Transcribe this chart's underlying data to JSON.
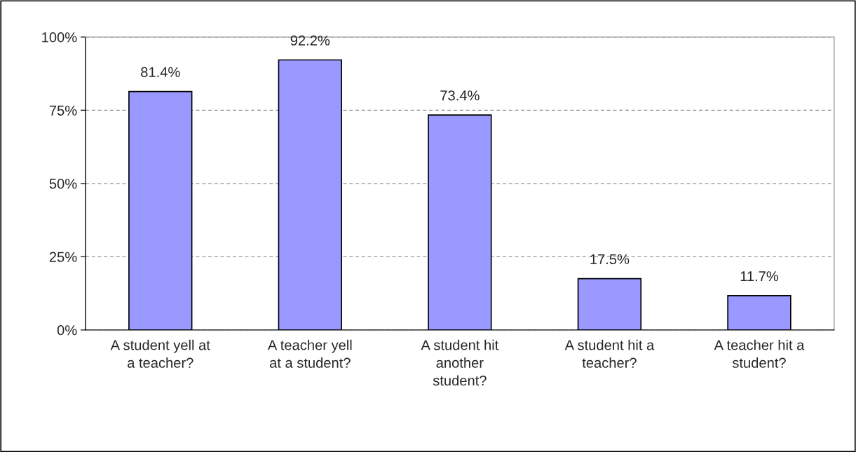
{
  "chart_data": {
    "type": "bar",
    "categories": [
      "A student yell at\na teacher?",
      "A teacher yell\nat a student?",
      "A student hit\nanother\nstudent?",
      "A student hit a\nteacher?",
      "A teacher hit a\nstudent?"
    ],
    "values": [
      81.4,
      92.2,
      73.4,
      17.5,
      11.7
    ],
    "value_labels": [
      "81.4%",
      "92.2%",
      "73.4%",
      "17.5%",
      "11.7%"
    ],
    "color": "#9999ff",
    "ylim": [
      0,
      100
    ],
    "yticks": [
      {
        "value": 0,
        "label": "0%"
      },
      {
        "value": 25,
        "label": "25%"
      },
      {
        "value": 50,
        "label": "50%"
      },
      {
        "value": 75,
        "label": "75%"
      },
      {
        "value": 100,
        "label": "100%"
      }
    ],
    "grid": "y",
    "legend": false
  }
}
